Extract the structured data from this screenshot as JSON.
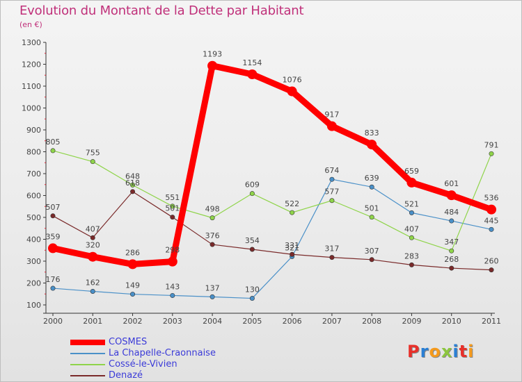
{
  "title": "Evolution du Montant de la Dette par Habitant",
  "subtitle": "(en €)",
  "logo": "Proxiti",
  "colors": {
    "title": "#c0307a",
    "legend_text": "#3b3bd8"
  },
  "chart_data": {
    "type": "line",
    "title": "Evolution du Montant de la Dette par Habitant",
    "ylabel": "(en €)",
    "xlabel": "",
    "ylim": [
      100,
      1300
    ],
    "yticks": [
      100,
      200,
      300,
      400,
      500,
      600,
      700,
      800,
      900,
      1000,
      1100,
      1200,
      1300
    ],
    "categories": [
      "2000",
      "2001",
      "2002",
      "2003",
      "2004",
      "2005",
      "2006",
      "2007",
      "2008",
      "2009",
      "2010",
      "2011"
    ],
    "grid": false,
    "legend_position": "bottom-left",
    "series": [
      {
        "name": "COSMES",
        "color": "#ff0000",
        "bold": true,
        "values": [
          359,
          320,
          286,
          298,
          1193,
          1154,
          1076,
          917,
          833,
          659,
          601,
          536
        ]
      },
      {
        "name": "La Chapelle-Craonnaise",
        "color": "#4a90c8",
        "bold": false,
        "values": [
          176,
          162,
          149,
          143,
          137,
          130,
          321,
          674,
          639,
          521,
          484,
          445
        ]
      },
      {
        "name": "Cossé-le-Vivien",
        "color": "#8fd44a",
        "bold": false,
        "values": [
          805,
          755,
          648,
          551,
          498,
          609,
          522,
          577,
          501,
          407,
          347,
          791
        ]
      },
      {
        "name": "Denazé",
        "color": "#7a2a2a",
        "bold": false,
        "values": [
          507,
          407,
          618,
          501,
          376,
          354,
          331,
          317,
          307,
          283,
          268,
          260
        ]
      }
    ]
  }
}
